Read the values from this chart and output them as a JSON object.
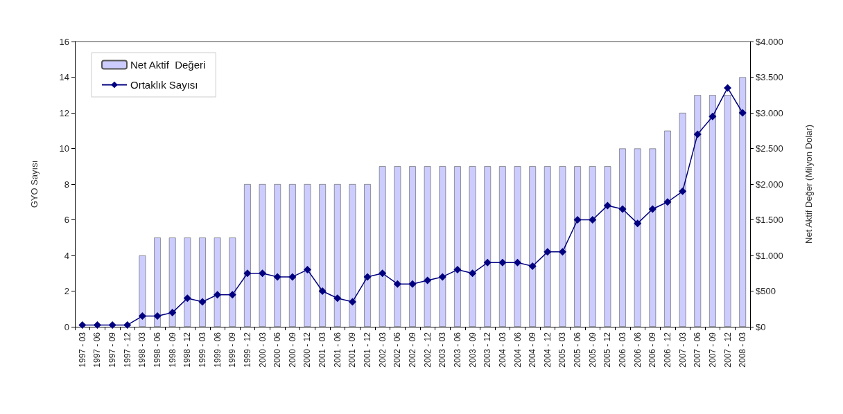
{
  "chart_data": {
    "type": "bar",
    "ylabel": "GYO Sayısı",
    "y2label": "Net Aktif Değer (Milyon Dolar)",
    "categories": [
      "1997 - 03",
      "1997 - 06",
      "1997 - 09",
      "1997 - 12",
      "1998 - 03",
      "1998 - 06",
      "1998 - 09",
      "1998 - 12",
      "1999 - 03",
      "1999 - 06",
      "1999 - 09",
      "1999 - 12",
      "2000 - 03",
      "2000 - 06",
      "2000 - 09",
      "2000 - 12",
      "2001 - 03",
      "2001 - 06",
      "2001 - 09",
      "2001 - 12",
      "2002 - 03",
      "2002 - 06",
      "2002 - 09",
      "2002 - 12",
      "2003 - 03",
      "2003 - 06",
      "2003 - 09",
      "2003 - 12",
      "2004 - 03",
      "2004 - 06",
      "2004 - 09",
      "2004 - 12",
      "2005 - 03",
      "2005 - 06",
      "2005 - 09",
      "2005 - 12",
      "2006 - 03",
      "2006 - 06",
      "2006 - 09",
      "2006 - 12",
      "2007 - 03",
      "2007 - 06",
      "2007 - 09",
      "2007 - 12",
      "2008 - 03"
    ],
    "series": [
      {
        "name": "Net Aktif  Değeri",
        "color": "#ccccff",
        "values": [
          0,
          0,
          0,
          0,
          4,
          5,
          5,
          5,
          5,
          5,
          5,
          8,
          8,
          8,
          8,
          8,
          8,
          8,
          8,
          8,
          9,
          9,
          9,
          9,
          9,
          9,
          9,
          9,
          9,
          9,
          9,
          9,
          9,
          9,
          9,
          9,
          10,
          10,
          10,
          11,
          12,
          13,
          13,
          13,
          14
        ]
      },
      {
        "name": "Ortaklık Sayısı",
        "type": "line",
        "axis": "y2",
        "color": "#000080",
        "values": [
          25,
          25,
          25,
          25,
          150,
          150,
          200,
          400,
          350,
          450,
          450,
          750,
          750,
          700,
          700,
          800,
          500,
          400,
          350,
          700,
          750,
          600,
          600,
          650,
          700,
          800,
          750,
          900,
          900,
          900,
          850,
          1050,
          1050,
          1500,
          1500,
          1700,
          1650,
          1450,
          1650,
          1750,
          1900,
          2700,
          2950,
          3350,
          3000
        ]
      }
    ],
    "ylim": [
      0,
      16
    ],
    "yticks": [
      0,
      2,
      4,
      6,
      8,
      10,
      12,
      14,
      16
    ],
    "y2lim": [
      0,
      4000
    ],
    "y2ticks": [
      {
        "value": 0,
        "label": "$0"
      },
      {
        "value": 500,
        "label": "$500"
      },
      {
        "value": 1000,
        "label": "$1.000"
      },
      {
        "value": 1500,
        "label": "$1.500"
      },
      {
        "value": 2000,
        "label": "$2.000"
      },
      {
        "value": 2500,
        "label": "$2.500"
      },
      {
        "value": 3000,
        "label": "$3.000"
      },
      {
        "value": 3500,
        "label": "$3.500"
      },
      {
        "value": 4000,
        "label": "$4.000"
      }
    ],
    "legend": "top left",
    "grid": false,
    "marker": "diamond",
    "line_style": "solid"
  }
}
